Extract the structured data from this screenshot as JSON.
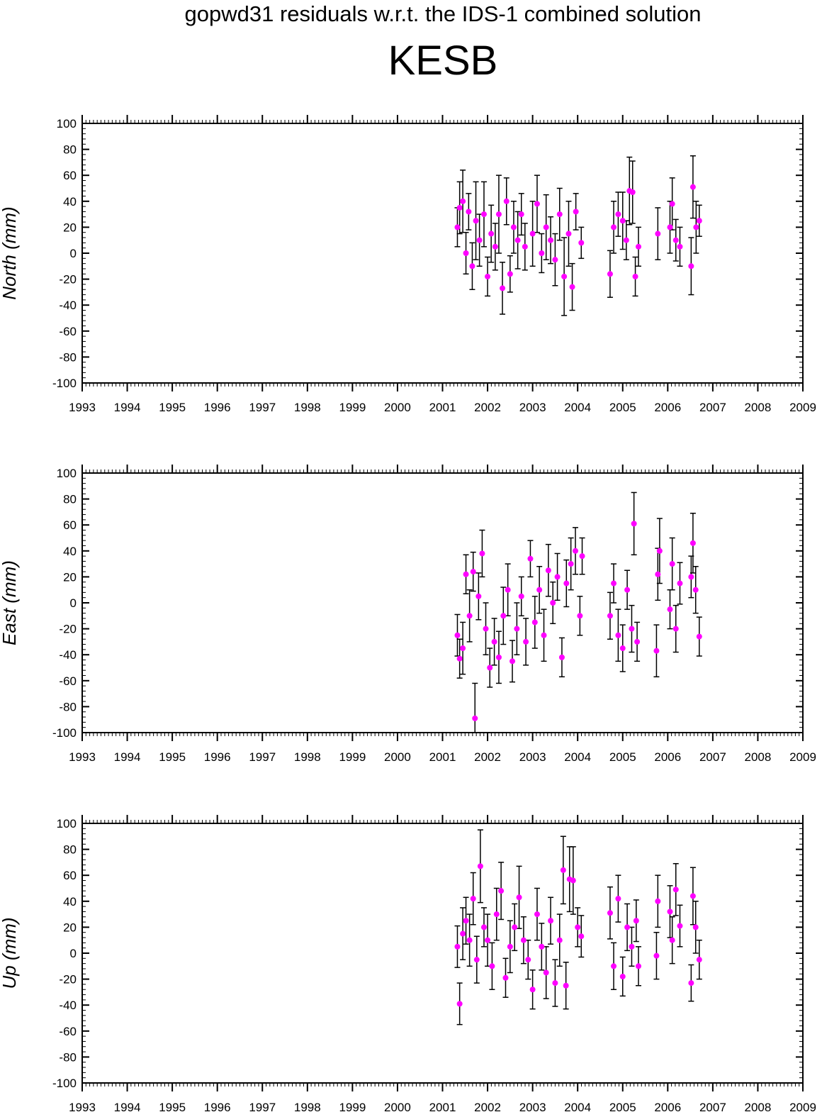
{
  "suptitle": "gopwd31 residuals w.r.t. the IDS-1 combined solution",
  "title": "KESB",
  "colors": {
    "point": "#ff00ff",
    "errorbar": "#000000",
    "axis": "#000000"
  },
  "chart_data": [
    {
      "type": "scatter",
      "component": "north",
      "ylabel": "North (mm)",
      "xlim": [
        1993,
        2009
      ],
      "ylim": [
        -100,
        100
      ],
      "xticks": [
        1993,
        1994,
        1995,
        1996,
        1997,
        1998,
        1999,
        2000,
        2001,
        2002,
        2003,
        2004,
        2005,
        2006,
        2007,
        2008,
        2009
      ],
      "yticks": [
        -100,
        -80,
        -60,
        -40,
        -20,
        0,
        20,
        40,
        60,
        80,
        100
      ],
      "series": [
        {
          "points": [
            {
              "x": 2001.33,
              "y": 20,
              "err": 15
            },
            {
              "x": 2001.38,
              "y": 35,
              "err": 20
            },
            {
              "x": 2001.45,
              "y": 40,
              "err": 24
            },
            {
              "x": 2001.52,
              "y": 0,
              "err": 16
            },
            {
              "x": 2001.58,
              "y": 32,
              "err": 14
            },
            {
              "x": 2001.66,
              "y": -10,
              "err": 18
            },
            {
              "x": 2001.74,
              "y": 25,
              "err": 30
            },
            {
              "x": 2001.82,
              "y": 10,
              "err": 20
            },
            {
              "x": 2001.92,
              "y": 30,
              "err": 25
            },
            {
              "x": 2002.0,
              "y": -18,
              "err": 15
            },
            {
              "x": 2002.08,
              "y": 15,
              "err": 22
            },
            {
              "x": 2002.17,
              "y": 5,
              "err": 18
            },
            {
              "x": 2002.25,
              "y": 30,
              "err": 30
            },
            {
              "x": 2002.33,
              "y": -27,
              "err": 20
            },
            {
              "x": 2002.42,
              "y": 40,
              "err": 18
            },
            {
              "x": 2002.5,
              "y": -16,
              "err": 14
            },
            {
              "x": 2002.58,
              "y": 20,
              "err": 20
            },
            {
              "x": 2002.67,
              "y": 10,
              "err": 22
            },
            {
              "x": 2002.75,
              "y": 30,
              "err": 16
            },
            {
              "x": 2002.83,
              "y": 5,
              "err": 18
            },
            {
              "x": 2003.0,
              "y": 15,
              "err": 25
            },
            {
              "x": 2003.1,
              "y": 38,
              "err": 22
            },
            {
              "x": 2003.2,
              "y": 0,
              "err": 15
            },
            {
              "x": 2003.3,
              "y": 20,
              "err": 25
            },
            {
              "x": 2003.4,
              "y": 10,
              "err": 18
            },
            {
              "x": 2003.5,
              "y": -5,
              "err": 20
            },
            {
              "x": 2003.6,
              "y": 30,
              "err": 20
            },
            {
              "x": 2003.7,
              "y": -18,
              "err": 30
            },
            {
              "x": 2003.8,
              "y": 15,
              "err": 25
            },
            {
              "x": 2003.88,
              "y": -26,
              "err": 18
            },
            {
              "x": 2003.96,
              "y": 32,
              "err": 14
            },
            {
              "x": 2004.08,
              "y": 8,
              "err": 12
            },
            {
              "x": 2004.72,
              "y": -16,
              "err": 18
            },
            {
              "x": 2004.8,
              "y": 20,
              "err": 20
            },
            {
              "x": 2004.9,
              "y": 30,
              "err": 17
            },
            {
              "x": 2005.0,
              "y": 25,
              "err": 22
            },
            {
              "x": 2005.08,
              "y": 10,
              "err": 15
            },
            {
              "x": 2005.15,
              "y": 48,
              "err": 26
            },
            {
              "x": 2005.22,
              "y": 47,
              "err": 24
            },
            {
              "x": 2005.28,
              "y": -18,
              "err": 15
            },
            {
              "x": 2005.35,
              "y": 5,
              "err": 15
            },
            {
              "x": 2005.78,
              "y": 15,
              "err": 20
            },
            {
              "x": 2006.05,
              "y": 20,
              "err": 20
            },
            {
              "x": 2006.1,
              "y": 38,
              "err": 20
            },
            {
              "x": 2006.18,
              "y": 10,
              "err": 16
            },
            {
              "x": 2006.27,
              "y": 5,
              "err": 15
            },
            {
              "x": 2006.52,
              "y": -10,
              "err": 22
            },
            {
              "x": 2006.56,
              "y": 51,
              "err": 24
            },
            {
              "x": 2006.63,
              "y": 20,
              "err": 20
            },
            {
              "x": 2006.7,
              "y": 25,
              "err": 12
            }
          ]
        }
      ]
    },
    {
      "type": "scatter",
      "component": "east",
      "ylabel": "East (mm)",
      "xlim": [
        1993,
        2009
      ],
      "ylim": [
        -100,
        100
      ],
      "xticks": [
        1993,
        1994,
        1995,
        1996,
        1997,
        1998,
        1999,
        2000,
        2001,
        2002,
        2003,
        2004,
        2005,
        2006,
        2007,
        2008,
        2009
      ],
      "yticks": [
        -100,
        -80,
        -60,
        -40,
        -20,
        0,
        20,
        40,
        60,
        80,
        100
      ],
      "series": [
        {
          "points": [
            {
              "x": 2001.33,
              "y": -25,
              "err": 16
            },
            {
              "x": 2001.38,
              "y": -43,
              "err": 15
            },
            {
              "x": 2001.45,
              "y": -35,
              "err": 20
            },
            {
              "x": 2001.52,
              "y": 22,
              "err": 15
            },
            {
              "x": 2001.6,
              "y": -10,
              "err": 20
            },
            {
              "x": 2001.68,
              "y": 24,
              "err": 15
            },
            {
              "x": 2001.72,
              "y": -89,
              "err": 27
            },
            {
              "x": 2001.8,
              "y": 5,
              "err": 18
            },
            {
              "x": 2001.88,
              "y": 38,
              "err": 18
            },
            {
              "x": 2001.96,
              "y": -20,
              "err": 20
            },
            {
              "x": 2002.05,
              "y": -50,
              "err": 15
            },
            {
              "x": 2002.15,
              "y": -30,
              "err": 18
            },
            {
              "x": 2002.25,
              "y": -42,
              "err": 20
            },
            {
              "x": 2002.35,
              "y": -10,
              "err": 22
            },
            {
              "x": 2002.45,
              "y": 10,
              "err": 20
            },
            {
              "x": 2002.55,
              "y": -45,
              "err": 16
            },
            {
              "x": 2002.65,
              "y": -20,
              "err": 20
            },
            {
              "x": 2002.75,
              "y": 5,
              "err": 15
            },
            {
              "x": 2002.85,
              "y": -30,
              "err": 18
            },
            {
              "x": 2002.95,
              "y": 34,
              "err": 14
            },
            {
              "x": 2003.05,
              "y": -15,
              "err": 20
            },
            {
              "x": 2003.15,
              "y": 10,
              "err": 18
            },
            {
              "x": 2003.25,
              "y": -25,
              "err": 20
            },
            {
              "x": 2003.35,
              "y": 25,
              "err": 20
            },
            {
              "x": 2003.45,
              "y": 0,
              "err": 16
            },
            {
              "x": 2003.55,
              "y": 20,
              "err": 18
            },
            {
              "x": 2003.65,
              "y": -42,
              "err": 15
            },
            {
              "x": 2003.75,
              "y": 15,
              "err": 18
            },
            {
              "x": 2003.85,
              "y": 30,
              "err": 20
            },
            {
              "x": 2003.95,
              "y": 40,
              "err": 18
            },
            {
              "x": 2004.05,
              "y": -10,
              "err": 15
            },
            {
              "x": 2004.1,
              "y": 36,
              "err": 14
            },
            {
              "x": 2004.72,
              "y": -10,
              "err": 18
            },
            {
              "x": 2004.8,
              "y": 15,
              "err": 15
            },
            {
              "x": 2004.9,
              "y": -25,
              "err": 20
            },
            {
              "x": 2005.0,
              "y": -35,
              "err": 18
            },
            {
              "x": 2005.1,
              "y": 10,
              "err": 15
            },
            {
              "x": 2005.2,
              "y": -20,
              "err": 18
            },
            {
              "x": 2005.25,
              "y": 61,
              "err": 24
            },
            {
              "x": 2005.32,
              "y": -30,
              "err": 15
            },
            {
              "x": 2005.75,
              "y": -37,
              "err": 20
            },
            {
              "x": 2005.78,
              "y": 22,
              "err": 20
            },
            {
              "x": 2005.82,
              "y": 40,
              "err": 25
            },
            {
              "x": 2006.05,
              "y": -5,
              "err": 15
            },
            {
              "x": 2006.1,
              "y": 30,
              "err": 20
            },
            {
              "x": 2006.18,
              "y": -20,
              "err": 18
            },
            {
              "x": 2006.27,
              "y": 15,
              "err": 16
            },
            {
              "x": 2006.52,
              "y": 20,
              "err": 16
            },
            {
              "x": 2006.56,
              "y": 46,
              "err": 23
            },
            {
              "x": 2006.62,
              "y": 10,
              "err": 18
            },
            {
              "x": 2006.7,
              "y": -26,
              "err": 15
            }
          ]
        }
      ]
    },
    {
      "type": "scatter",
      "component": "up",
      "ylabel": "Up (mm)",
      "xlim": [
        1993,
        2009
      ],
      "ylim": [
        -100,
        100
      ],
      "xticks": [
        1993,
        1994,
        1995,
        1996,
        1997,
        1998,
        1999,
        2000,
        2001,
        2002,
        2003,
        2004,
        2005,
        2006,
        2007,
        2008,
        2009
      ],
      "yticks": [
        -100,
        -80,
        -60,
        -40,
        -20,
        0,
        20,
        40,
        60,
        80,
        100
      ],
      "series": [
        {
          "points": [
            {
              "x": 2001.33,
              "y": 5,
              "err": 16
            },
            {
              "x": 2001.38,
              "y": -39,
              "err": 16
            },
            {
              "x": 2001.45,
              "y": 15,
              "err": 20
            },
            {
              "x": 2001.52,
              "y": 25,
              "err": 18
            },
            {
              "x": 2001.6,
              "y": 10,
              "err": 20
            },
            {
              "x": 2001.68,
              "y": 42,
              "err": 20
            },
            {
              "x": 2001.76,
              "y": -5,
              "err": 18
            },
            {
              "x": 2001.84,
              "y": 67,
              "err": 28
            },
            {
              "x": 2001.92,
              "y": 20,
              "err": 15
            },
            {
              "x": 2002.0,
              "y": 10,
              "err": 20
            },
            {
              "x": 2002.1,
              "y": -10,
              "err": 18
            },
            {
              "x": 2002.2,
              "y": 30,
              "err": 20
            },
            {
              "x": 2002.3,
              "y": 48,
              "err": 22
            },
            {
              "x": 2002.4,
              "y": -19,
              "err": 15
            },
            {
              "x": 2002.5,
              "y": 5,
              "err": 20
            },
            {
              "x": 2002.6,
              "y": 20,
              "err": 18
            },
            {
              "x": 2002.7,
              "y": 43,
              "err": 24
            },
            {
              "x": 2002.8,
              "y": 10,
              "err": 18
            },
            {
              "x": 2002.9,
              "y": -5,
              "err": 15
            },
            {
              "x": 2003.0,
              "y": -28,
              "err": 15
            },
            {
              "x": 2003.1,
              "y": 30,
              "err": 20
            },
            {
              "x": 2003.2,
              "y": 5,
              "err": 18
            },
            {
              "x": 2003.3,
              "y": -15,
              "err": 20
            },
            {
              "x": 2003.4,
              "y": 25,
              "err": 18
            },
            {
              "x": 2003.5,
              "y": -23,
              "err": 18
            },
            {
              "x": 2003.6,
              "y": 10,
              "err": 20
            },
            {
              "x": 2003.68,
              "y": 64,
              "err": 26
            },
            {
              "x": 2003.74,
              "y": -25,
              "err": 18
            },
            {
              "x": 2003.82,
              "y": 57,
              "err": 25
            },
            {
              "x": 2003.9,
              "y": 56,
              "err": 26
            },
            {
              "x": 2004.0,
              "y": 20,
              "err": 15
            },
            {
              "x": 2004.08,
              "y": 13,
              "err": 16
            },
            {
              "x": 2004.72,
              "y": 31,
              "err": 20
            },
            {
              "x": 2004.8,
              "y": -10,
              "err": 18
            },
            {
              "x": 2004.9,
              "y": 42,
              "err": 18
            },
            {
              "x": 2005.0,
              "y": -18,
              "err": 15
            },
            {
              "x": 2005.1,
              "y": 20,
              "err": 18
            },
            {
              "x": 2005.2,
              "y": 5,
              "err": 15
            },
            {
              "x": 2005.3,
              "y": 25,
              "err": 16
            },
            {
              "x": 2005.35,
              "y": -10,
              "err": 15
            },
            {
              "x": 2005.75,
              "y": -2,
              "err": 18
            },
            {
              "x": 2005.78,
              "y": 40,
              "err": 20
            },
            {
              "x": 2006.05,
              "y": 32,
              "err": 20
            },
            {
              "x": 2006.1,
              "y": 10,
              "err": 18
            },
            {
              "x": 2006.18,
              "y": 49,
              "err": 20
            },
            {
              "x": 2006.27,
              "y": 21,
              "err": 16
            },
            {
              "x": 2006.52,
              "y": -23,
              "err": 14
            },
            {
              "x": 2006.56,
              "y": 44,
              "err": 22
            },
            {
              "x": 2006.62,
              "y": 20,
              "err": 20
            },
            {
              "x": 2006.7,
              "y": -5,
              "err": 15
            }
          ]
        }
      ]
    }
  ]
}
